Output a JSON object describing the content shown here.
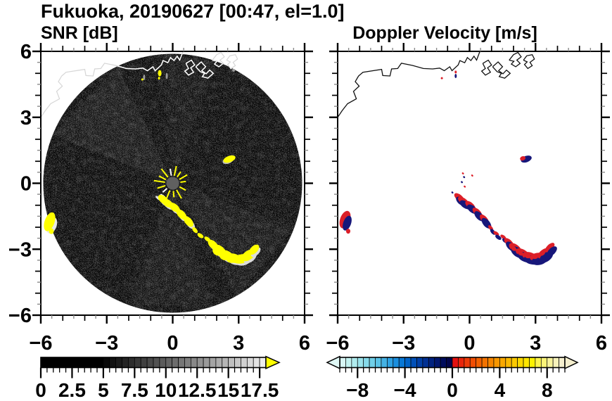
{
  "chart_data": {
    "type": "heatmap",
    "title": "Fukuoka, 20190627 [00:47, el=1.0]",
    "station": "Fukuoka",
    "date": "20190627",
    "time": "00:47",
    "elevation": "el=1.0",
    "panels": [
      {
        "id": "snr",
        "subtitle": "SNR [dB]",
        "xlim": [
          -6,
          6
        ],
        "ylim": [
          -6,
          6
        ],
        "xticks": [
          -6,
          -3,
          0,
          3,
          6
        ],
        "yticks": [
          6,
          3,
          0,
          -3,
          -6
        ],
        "xtick_labels": [
          "−6",
          "−3",
          "0",
          "3",
          "6"
        ],
        "ytick_labels": [
          "6",
          "3",
          "0",
          "−3",
          "−6"
        ],
        "minor_tick_step": 0.5,
        "radar_disc": {
          "center": [
            0,
            0
          ],
          "radius_km": 5.9,
          "fill": "#000000"
        },
        "colorbar": {
          "range": [
            0,
            18
          ],
          "segment_step": 0.5,
          "tick_values": [
            0,
            2.5,
            5,
            7.5,
            10,
            12.5,
            15,
            17.5
          ],
          "tick_labels": [
            "0",
            "2.5",
            "5",
            "7.5",
            "10",
            "12.5",
            "15",
            "17.5"
          ],
          "segments": [
            "#000000",
            "#000000",
            "#000000",
            "#000000",
            "#000000",
            "#000000",
            "#000000",
            "#000000",
            "#000000",
            "#000000",
            "#090909",
            "#121212",
            "#1b1b1b",
            "#242424",
            "#2d2d2d",
            "#373737",
            "#404040",
            "#494949",
            "#525252",
            "#5b5b5b",
            "#646464",
            "#6d6d6d",
            "#767676",
            "#7f7f7f",
            "#888888",
            "#919191",
            "#9a9a9a",
            "#a4a4a4",
            "#adadad",
            "#b6b6b6",
            "#bfbfbf",
            "#c8c8c8",
            "#d1d1d1",
            "#dadada",
            "#e3e3e3",
            "#ececec"
          ],
          "overflow_arrow_color": "#ffff00"
        }
      },
      {
        "id": "velocity",
        "subtitle": "Doppler Velocity [m/s]",
        "xlim": [
          -6,
          6
        ],
        "ylim": [
          -6,
          6
        ],
        "xticks": [
          -6,
          -3,
          0,
          3,
          6
        ],
        "yticks": [
          6,
          3,
          0,
          -3,
          -6
        ],
        "xtick_labels": [
          "−6",
          "−3",
          "0",
          "3",
          "6"
        ],
        "ytick_labels": [],
        "minor_tick_step": 0.5,
        "colorbar": {
          "range": [
            -9.5,
            9.5
          ],
          "segment_step": 0.5,
          "tick_values": [
            -8,
            -4,
            0,
            4,
            8
          ],
          "tick_labels": [
            "−8",
            "−4",
            "0",
            "4",
            "8"
          ],
          "segments": [
            "#d8f6f4",
            "#c4f2f0",
            "#b0ecee",
            "#9ce4ec",
            "#86daea",
            "#70cfe8",
            "#5ac2e6",
            "#44b2e4",
            "#2ea1e2",
            "#1a8ede",
            "#0878d6",
            "#0063c8",
            "#0050b8",
            "#003fa6",
            "#003093",
            "#002280",
            "#00166e",
            "#000c5c",
            "#02054a",
            "#e41110",
            "#e8250c",
            "#ec3a08",
            "#f04e04",
            "#f26100",
            "#f47300",
            "#f68500",
            "#f89700",
            "#faa800",
            "#fbb900",
            "#fcca00",
            "#fdd900",
            "#fee700",
            "#fef200",
            "#fdf44e",
            "#fbf478",
            "#f9f49c",
            "#f7f2ba",
            "#f5efce"
          ],
          "under_arrow_color": "#e0f8f6",
          "over_arrow_color": "#f5efce"
        }
      }
    ],
    "colors": {
      "snr_echo": "#ffff00",
      "snr_echo_shadow": "#dcdcdc",
      "snr_clutter_gray": "#9a9a9a",
      "vel_positive": "#dc1f28",
      "vel_negative": "#17177a",
      "coast_snr": "#ffffff",
      "coast_snr_faint": "#d6d6d6",
      "coast_vel": "#111111",
      "radar_center_disc": "#606060"
    },
    "overlays": {
      "coastline_km": [
        [
          -6.0,
          3.0
        ],
        [
          -5.8,
          3.3
        ],
        [
          -5.55,
          3.62
        ],
        [
          -5.15,
          3.84
        ],
        [
          -5.28,
          4.18
        ],
        [
          -5.02,
          4.42
        ],
        [
          -5.2,
          4.62
        ],
        [
          -5.05,
          4.88
        ],
        [
          -4.85,
          5.05
        ],
        [
          -4.0,
          5.18
        ],
        [
          -3.95,
          4.9
        ],
        [
          -3.62,
          4.88
        ],
        [
          -3.55,
          5.2
        ],
        [
          -3.27,
          5.22
        ],
        [
          -3.1,
          5.46
        ],
        [
          -2.6,
          5.36
        ],
        [
          -2.1,
          5.22
        ],
        [
          -1.68,
          5.2
        ],
        [
          -1.36,
          5.24
        ],
        [
          -1.15,
          5.12
        ],
        [
          -0.9,
          5.3
        ],
        [
          -0.8,
          5.12
        ],
        [
          -0.52,
          5.38
        ],
        [
          -0.44,
          5.58
        ],
        [
          -0.22,
          5.48
        ],
        [
          -0.1,
          5.72
        ],
        [
          0.06,
          5.58
        ],
        [
          0.2,
          5.78
        ],
        [
          0.32,
          5.6
        ],
        [
          0.45,
          5.95
        ],
        [
          0.52,
          6.1
        ]
      ],
      "ports_km": [
        [
          [
            0.6,
            5.45
          ],
          [
            0.85,
            5.6
          ],
          [
            1.0,
            5.38
          ],
          [
            0.82,
            5.25
          ],
          [
            0.95,
            5.05
          ],
          [
            0.72,
            4.92
          ],
          [
            0.55,
            5.1
          ],
          [
            0.72,
            5.22
          ],
          [
            0.6,
            5.45
          ]
        ],
        [
          [
            1.05,
            5.3
          ],
          [
            1.3,
            5.52
          ],
          [
            1.5,
            5.3
          ],
          [
            1.32,
            5.12
          ],
          [
            1.52,
            4.98
          ],
          [
            1.68,
            5.15
          ],
          [
            1.85,
            5.0
          ],
          [
            1.6,
            4.78
          ],
          [
            1.35,
            4.85
          ],
          [
            1.45,
            5.0
          ],
          [
            1.25,
            5.08
          ],
          [
            1.05,
            5.3
          ]
        ],
        [
          [
            1.8,
            5.6
          ],
          [
            2.0,
            5.85
          ],
          [
            2.2,
            5.95
          ],
          [
            2.35,
            5.75
          ],
          [
            2.15,
            5.6
          ],
          [
            2.3,
            5.45
          ],
          [
            2.1,
            5.3
          ],
          [
            1.9,
            5.42
          ],
          [
            2.02,
            5.55
          ],
          [
            1.8,
            5.6
          ]
        ],
        [
          [
            2.45,
            5.6
          ],
          [
            2.6,
            5.8
          ],
          [
            2.85,
            5.85
          ],
          [
            2.95,
            5.65
          ],
          [
            2.75,
            5.5
          ],
          [
            2.85,
            5.35
          ],
          [
            2.65,
            5.22
          ],
          [
            2.5,
            5.4
          ],
          [
            2.62,
            5.52
          ],
          [
            2.45,
            5.6
          ]
        ]
      ],
      "echo_arc_km": [
        {
          "x": -0.42,
          "y": -0.75,
          "size": "m"
        },
        {
          "x": -0.24,
          "y": -0.9,
          "size": "m"
        },
        {
          "x": 0.08,
          "y": -1.1,
          "size": "m"
        },
        {
          "x": 0.4,
          "y": -1.42,
          "size": "m"
        },
        {
          "x": 0.72,
          "y": -1.74,
          "size": "m"
        },
        {
          "x": 1.01,
          "y": -2.13,
          "size": "s"
        },
        {
          "x": 1.26,
          "y": -2.38,
          "size": "s"
        },
        {
          "x": 1.58,
          "y": -2.54,
          "size": "s"
        },
        {
          "x": 1.84,
          "y": -2.8,
          "size": "m"
        },
        {
          "x": 2.13,
          "y": -3.06,
          "size": "l"
        },
        {
          "x": 2.45,
          "y": -3.28,
          "size": "l"
        },
        {
          "x": 2.77,
          "y": -3.41,
          "size": "l"
        },
        {
          "x": 3.12,
          "y": -3.44,
          "size": "l"
        },
        {
          "x": 3.44,
          "y": -3.28,
          "size": "l"
        },
        {
          "x": 3.7,
          "y": -3.02,
          "size": "m"
        }
      ],
      "isolated_echo_km": {
        "x": 2.58,
        "y": 1.1
      },
      "west_edge_echo_km": {
        "x": -5.6,
        "y": -1.75
      },
      "coast_echoes_snr_km": [
        {
          "x": -0.59,
          "y": 5.01,
          "w": 5,
          "h": 9,
          "color": "#ffff00"
        },
        {
          "x": -0.62,
          "y": 4.78,
          "w": 3,
          "h": 4,
          "color": "#ffff00"
        },
        {
          "x": -1.3,
          "y": 4.82,
          "w": 3,
          "h": 8,
          "color": "#9a9a9a"
        },
        {
          "x": -1.38,
          "y": 4.72,
          "w": 3,
          "h": 3,
          "color": "#ffff00"
        },
        {
          "x": -0.27,
          "y": 4.88,
          "w": 3,
          "h": 9,
          "color": "#9a9a9a"
        },
        {
          "x": 2.77,
          "y": 5.14,
          "w": 4,
          "h": 4,
          "color": "#9a9a9a"
        }
      ],
      "coast_echoes_vel_km": [
        {
          "x": -0.63,
          "y": 5.06,
          "w": 3,
          "h": 4,
          "color": "#dc1f28"
        },
        {
          "x": -0.63,
          "y": 4.88,
          "w": 3,
          "h": 6,
          "color": "#17177a"
        },
        {
          "x": -1.26,
          "y": 4.78,
          "w": 3,
          "h": 3,
          "color": "#dc1f28"
        }
      ],
      "center_specks_vel_km": [
        {
          "x": -0.3,
          "y": 0.45,
          "color": "#dc1f28"
        },
        {
          "x": -0.25,
          "y": 0.28,
          "color": "#17177a"
        },
        {
          "x": -0.35,
          "y": 0.05,
          "color": "#17177a"
        },
        {
          "x": -0.22,
          "y": -0.15,
          "color": "#dc1f28"
        },
        {
          "x": 0.12,
          "y": 0.35,
          "color": "#dc1f28"
        },
        {
          "x": -0.78,
          "y": -0.42,
          "color": "#17177a"
        }
      ]
    }
  }
}
